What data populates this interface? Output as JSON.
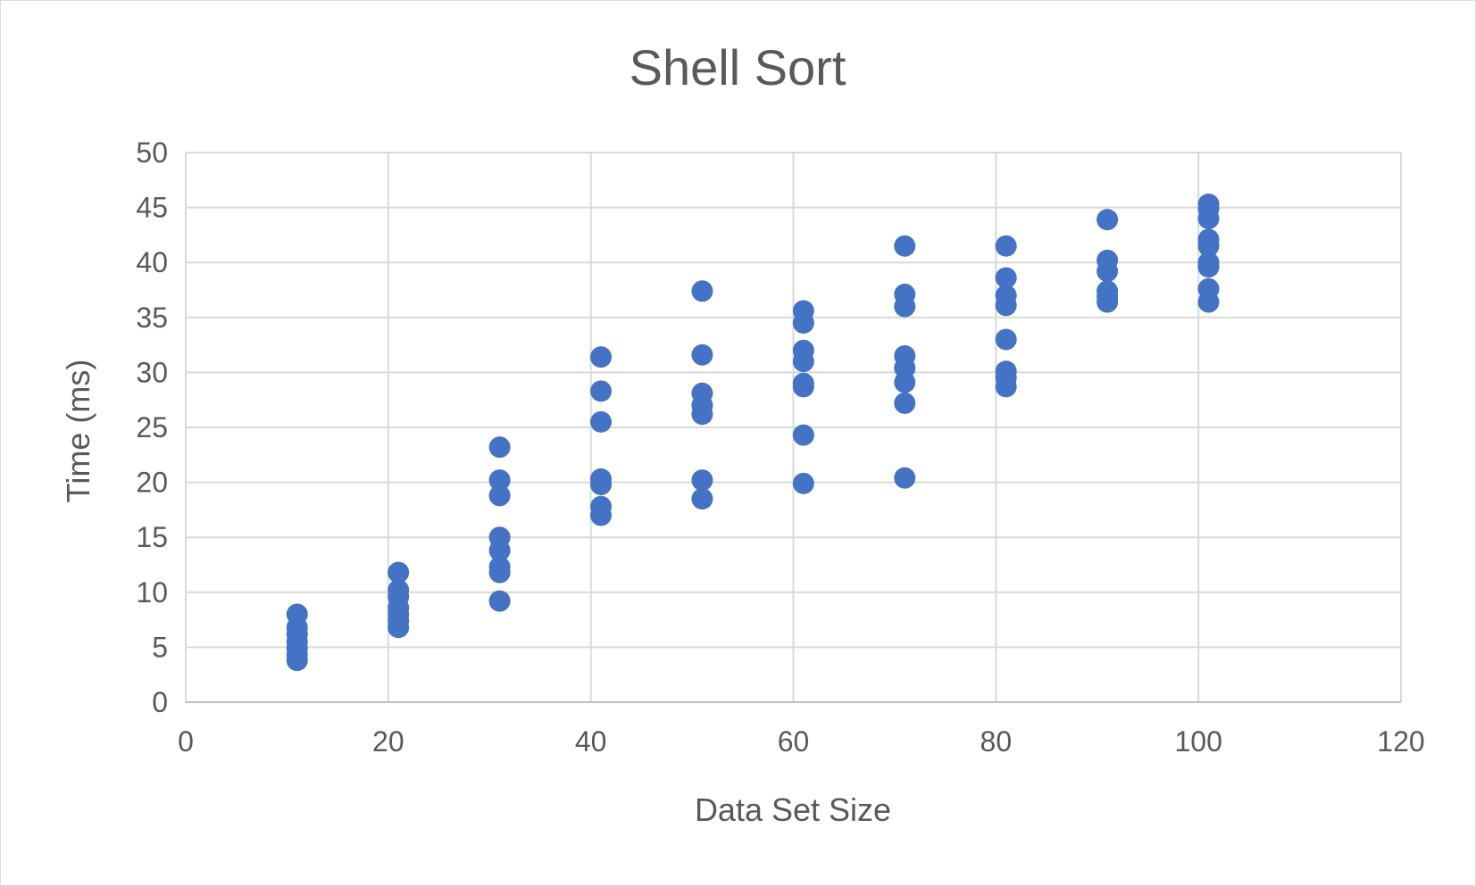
{
  "chart_data": {
    "type": "scatter",
    "title": "Shell Sort",
    "xlabel": "Data Set Size",
    "ylabel": "Time (ms)",
    "xlim": [
      0,
      120
    ],
    "ylim": [
      0,
      50
    ],
    "x_ticks": [
      "0",
      "20",
      "40",
      "60",
      "80",
      "100",
      "120"
    ],
    "y_ticks": [
      "0",
      "5",
      "10",
      "15",
      "20",
      "25",
      "30",
      "35",
      "40",
      "45",
      "50"
    ],
    "grid": true,
    "legend": "none",
    "marker_color": "#4472C4",
    "series": [
      {
        "points": [
          [
            11,
            8.0
          ],
          [
            11,
            6.8
          ],
          [
            11,
            6.2
          ],
          [
            11,
            5.5
          ],
          [
            11,
            4.9
          ],
          [
            11,
            4.3
          ],
          [
            11,
            3.8
          ],
          [
            21,
            11.8
          ],
          [
            21,
            10.2
          ],
          [
            21,
            9.6
          ],
          [
            21,
            8.6
          ],
          [
            21,
            8.0
          ],
          [
            21,
            7.4
          ],
          [
            21,
            6.8
          ],
          [
            31,
            23.2
          ],
          [
            31,
            20.2
          ],
          [
            31,
            18.8
          ],
          [
            31,
            15.0
          ],
          [
            31,
            13.8
          ],
          [
            31,
            12.3
          ],
          [
            31,
            11.8
          ],
          [
            31,
            9.2
          ],
          [
            41,
            31.4
          ],
          [
            41,
            28.3
          ],
          [
            41,
            25.5
          ],
          [
            41,
            20.3
          ],
          [
            41,
            19.8
          ],
          [
            41,
            17.8
          ],
          [
            41,
            17.0
          ],
          [
            51,
            37.4
          ],
          [
            51,
            31.6
          ],
          [
            51,
            28.1
          ],
          [
            51,
            27.0
          ],
          [
            51,
            26.2
          ],
          [
            51,
            20.2
          ],
          [
            51,
            18.5
          ],
          [
            61,
            35.6
          ],
          [
            61,
            34.5
          ],
          [
            61,
            32.0
          ],
          [
            61,
            31.0
          ],
          [
            61,
            29.0
          ],
          [
            61,
            28.7
          ],
          [
            61,
            24.3
          ],
          [
            61,
            19.9
          ],
          [
            71,
            41.5
          ],
          [
            71,
            37.1
          ],
          [
            71,
            36.0
          ],
          [
            71,
            31.5
          ],
          [
            71,
            30.4
          ],
          [
            71,
            29.1
          ],
          [
            71,
            27.2
          ],
          [
            71,
            20.4
          ],
          [
            81,
            41.5
          ],
          [
            81,
            38.6
          ],
          [
            81,
            37.0
          ],
          [
            81,
            36.1
          ],
          [
            81,
            33.0
          ],
          [
            81,
            30.1
          ],
          [
            81,
            29.5
          ],
          [
            81,
            28.7
          ],
          [
            91,
            43.9
          ],
          [
            91,
            40.2
          ],
          [
            91,
            39.2
          ],
          [
            91,
            37.4
          ],
          [
            91,
            36.9
          ],
          [
            91,
            36.4
          ],
          [
            101,
            45.3
          ],
          [
            101,
            44.9
          ],
          [
            101,
            44.0
          ],
          [
            101,
            42.1
          ],
          [
            101,
            41.5
          ],
          [
            101,
            40.0
          ],
          [
            101,
            39.6
          ],
          [
            101,
            37.6
          ],
          [
            101,
            36.4
          ]
        ]
      }
    ]
  }
}
